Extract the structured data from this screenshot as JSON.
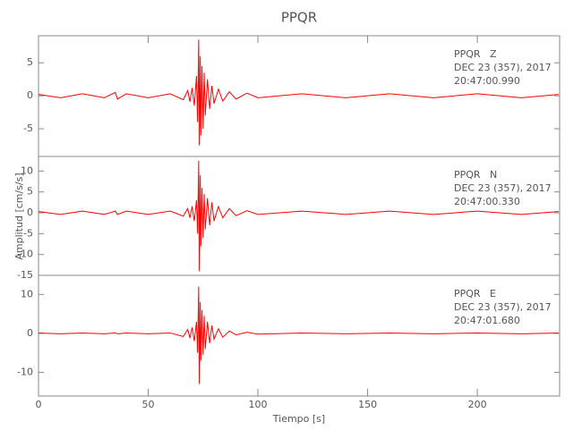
{
  "chart_data": [
    {
      "type": "line",
      "title": "PPQR",
      "annotations": [
        "PPQR   Z",
        "DEC 23 (357), 2017",
        "20:47:00.990"
      ],
      "x": [
        0,
        10,
        20,
        30,
        35,
        36,
        40,
        50,
        60,
        66,
        68,
        69,
        70,
        71,
        72,
        72.5,
        73,
        73.3,
        73.7,
        74,
        74.5,
        75,
        75.5,
        76,
        77,
        78,
        79,
        80,
        82,
        84,
        87,
        90,
        95,
        100,
        120,
        140,
        160,
        180,
        200,
        220,
        237
      ],
      "values": [
        0.2,
        -0.3,
        0.3,
        -0.3,
        0.5,
        -0.5,
        0.3,
        -0.3,
        0.3,
        -0.6,
        0.8,
        -0.9,
        1.2,
        -1.5,
        3,
        -4,
        8.5,
        -7.5,
        6,
        -6,
        4.5,
        -5,
        3.5,
        -3,
        2.5,
        -2,
        1.5,
        -1.2,
        1,
        -0.8,
        0.6,
        -0.5,
        0.4,
        -0.3,
        0.3,
        -0.3,
        0.3,
        -0.3,
        0.3,
        -0.3,
        0.2
      ],
      "color": "#ff0000",
      "xlim": [
        0,
        237.5
      ],
      "ylim": [
        -9.2,
        9.1
      ],
      "yticks": [
        5,
        0,
        -5
      ]
    },
    {
      "type": "line",
      "y_label": "Amplitud [cm/s/s]",
      "annotations": [
        "PPQR   N",
        "DEC 23 (357), 2017",
        "20:47:00.330"
      ],
      "x": [
        0,
        10,
        20,
        30,
        35,
        36,
        40,
        50,
        60,
        66,
        68,
        69,
        70,
        71,
        72,
        72.5,
        73,
        73.3,
        73.7,
        74,
        74.5,
        75,
        75.5,
        76,
        77,
        78,
        79,
        80,
        82,
        84,
        87,
        90,
        95,
        100,
        120,
        140,
        160,
        180,
        200,
        220,
        237
      ],
      "values": [
        0.3,
        -0.4,
        0.4,
        -0.4,
        0.4,
        -0.4,
        0.4,
        -0.4,
        0.4,
        -0.8,
        1,
        -1.2,
        1.5,
        -2,
        3,
        -5,
        12.5,
        -14,
        9,
        -8,
        6,
        -6,
        4.5,
        -4,
        3.5,
        -3,
        2.5,
        -2,
        1.5,
        -1.2,
        1,
        -0.7,
        0.5,
        -0.4,
        0.4,
        -0.4,
        0.4,
        -0.4,
        0.4,
        -0.4,
        0.3
      ],
      "color": "#ff0000",
      "xlim": [
        0,
        237.5
      ],
      "ylim": [
        -15,
        13.5
      ],
      "yticks": [
        10,
        5,
        0,
        -5,
        -10,
        -15
      ]
    },
    {
      "type": "line",
      "x_label": "Tiempo [s]",
      "annotations": [
        "PPQR   E",
        "DEC 23 (357), 2017",
        "20:47:01.680"
      ],
      "x": [
        0,
        10,
        20,
        30,
        35,
        36,
        40,
        50,
        60,
        66,
        68,
        69,
        70,
        71,
        72,
        72.5,
        73,
        73.3,
        73.7,
        74,
        74.5,
        75,
        75.5,
        76,
        77,
        78,
        79,
        80,
        82,
        84,
        87,
        90,
        95,
        100,
        120,
        140,
        160,
        180,
        200,
        220,
        237
      ],
      "values": [
        0.1,
        -0.1,
        0.1,
        -0.1,
        0.1,
        -0.1,
        0.1,
        -0.1,
        0.1,
        -0.8,
        1,
        -1.2,
        1.5,
        -2,
        3,
        -5,
        12,
        -13,
        8,
        -7,
        6,
        -5.5,
        4.5,
        -4,
        3,
        -2.5,
        2,
        -1.5,
        1.2,
        -1,
        0.6,
        -0.4,
        0.3,
        -0.2,
        0.1,
        -0.1,
        0.1,
        -0.1,
        0.1,
        -0.1,
        0.1
      ],
      "color": "#ff0000",
      "xlim": [
        0,
        237.5
      ],
      "ylim": [
        -16.1,
        14.9
      ],
      "yticks": [
        10,
        0,
        -10
      ],
      "xticks": [
        0,
        50,
        100,
        150,
        200
      ]
    }
  ]
}
